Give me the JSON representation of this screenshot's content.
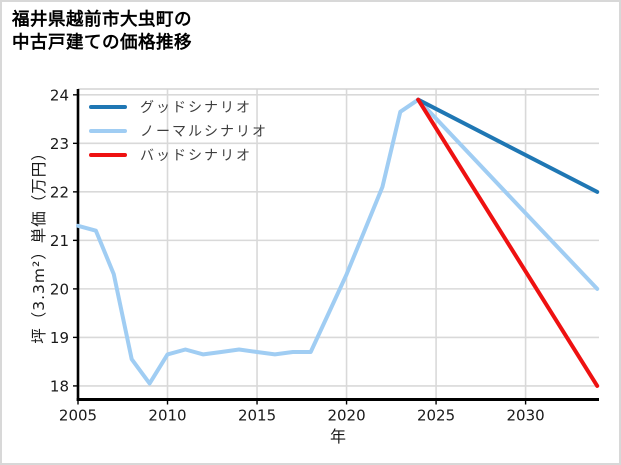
{
  "header": {
    "title_line1": "福井県越前市大虫町の",
    "title_line2": "中古戸建ての価格推移"
  },
  "chart_data": {
    "type": "line",
    "title": "福井県越前市大虫町の中古戸建ての価格推移",
    "xlabel": "年",
    "ylabel": "坪（3.3m²）単価（万円）",
    "xlim": [
      2005,
      2034.1
    ],
    "ylim": [
      17.72,
      24.12
    ],
    "xticks": [
      2005,
      2010,
      2015,
      2020,
      2025,
      2030
    ],
    "yticks": [
      18,
      19,
      20,
      21,
      22,
      23,
      24
    ],
    "grid": true,
    "legend": {
      "position": "upper-left",
      "frame": false
    },
    "colors": {
      "grid": "#d9d9d9",
      "axis": "#000000",
      "top_spine": "#d4d4d4",
      "tick_text": "#1a1a1a",
      "legend_text": "#3d3d3d"
    },
    "series": [
      {
        "name": "グッドシナリオ",
        "role": "good-scenario",
        "color": "#1f77b4",
        "x": [
          2024,
          2034
        ],
        "y": [
          23.9,
          22.0
        ]
      },
      {
        "name": "ノーマルシナリオ",
        "role": "normal-scenario",
        "color": "#a0cdf3",
        "x": [
          2005,
          2006,
          2007,
          2008,
          2009,
          2010,
          2011,
          2012,
          2013,
          2014,
          2015,
          2016,
          2017,
          2018,
          2019,
          2020,
          2021,
          2022,
          2023,
          2024,
          2034
        ],
        "y": [
          21.3,
          21.2,
          20.3,
          18.55,
          18.05,
          18.65,
          18.75,
          18.65,
          18.7,
          18.75,
          18.7,
          18.65,
          18.7,
          18.7,
          19.5,
          20.3,
          21.2,
          22.1,
          23.65,
          23.9,
          20.0
        ]
      },
      {
        "name": "バッドシナリオ",
        "role": "bad-scenario",
        "color": "#ee1111",
        "x": [
          2024,
          2034
        ],
        "y": [
          23.9,
          18.0
        ]
      }
    ],
    "draw_order": [
      1,
      0,
      2
    ],
    "line_width": 4
  }
}
